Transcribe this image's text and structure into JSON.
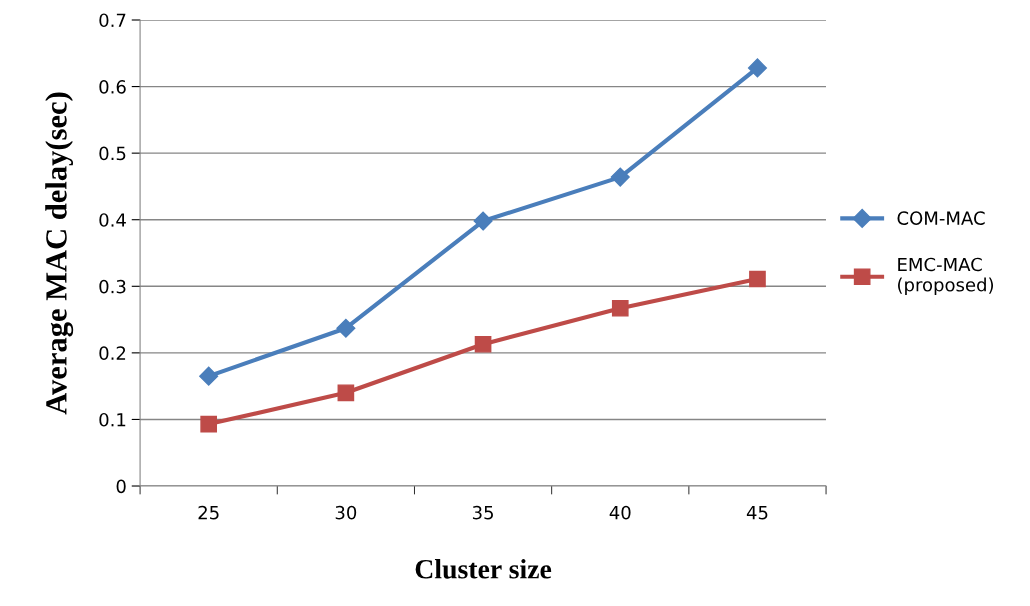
{
  "chart_data": {
    "type": "line",
    "xlabel": "Cluster size",
    "ylabel": "Average MAC delay(sec)",
    "categories": [
      "25",
      "30",
      "35",
      "40",
      "45"
    ],
    "series": [
      {
        "name": "COM-MAC",
        "color": "#4a7ebb",
        "values": [
          0.165,
          0.237,
          0.398,
          0.464,
          0.628
        ],
        "marker": "diamond"
      },
      {
        "name": "EMC-MAC\n(proposed)",
        "color": "#be4b48",
        "values": [
          0.093,
          0.14,
          0.213,
          0.267,
          0.311
        ],
        "marker": "square"
      }
    ],
    "ylim": [
      0,
      0.7
    ],
    "yticks": [
      0,
      0.1,
      0.2,
      0.3,
      0.4,
      0.5,
      0.6,
      0.7
    ],
    "grid": "y",
    "legend": "right",
    "line_style": "solid"
  }
}
